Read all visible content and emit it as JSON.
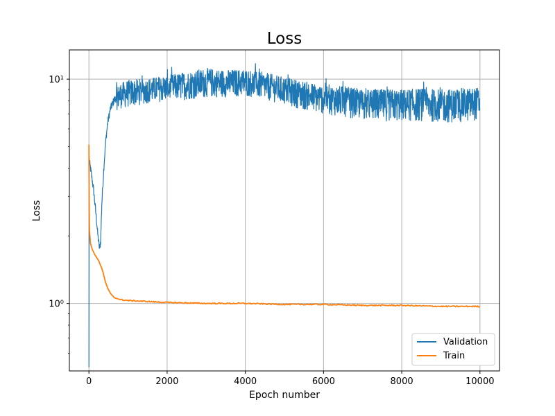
{
  "chart_data": {
    "type": "line",
    "title": "Loss",
    "xlabel": "Epoch number",
    "ylabel": "Loss",
    "yscale": "log",
    "xlim": [
      -500,
      10500
    ],
    "ylim": [
      0.5,
      13.5
    ],
    "xticks": [
      0,
      2000,
      4000,
      6000,
      8000,
      10000
    ],
    "xtick_labels": [
      "0",
      "2000",
      "4000",
      "6000",
      "8000",
      "10000"
    ],
    "yticks": [
      1,
      10
    ],
    "ytick_labels": [
      "10⁰",
      "10¹"
    ],
    "grid": true,
    "legend_position": "lower right",
    "series": [
      {
        "name": "Validation",
        "color": "#1f77b4",
        "noise_band": true,
        "x": [
          0,
          5,
          20,
          60,
          120,
          180,
          230,
          270,
          300,
          330,
          380,
          430,
          480,
          550,
          650,
          800,
          1000,
          1500,
          2000,
          2500,
          3000,
          3500,
          4000,
          4500,
          5000,
          5500,
          6000,
          6500,
          7000,
          7500,
          8000,
          8500,
          9000,
          9500,
          10000
        ],
        "values": [
          0.52,
          4.5,
          4.2,
          3.8,
          3.2,
          2.5,
          2.0,
          1.75,
          1.9,
          2.8,
          4.0,
          5.3,
          6.4,
          7.4,
          8.1,
          8.5,
          8.6,
          8.8,
          9.0,
          9.2,
          9.4,
          9.5,
          9.5,
          9.2,
          8.9,
          8.5,
          8.2,
          8.0,
          7.8,
          7.7,
          7.7,
          7.7,
          7.6,
          7.6,
          7.6
        ],
        "band_lower": [
          0.52,
          4.0,
          3.8,
          3.4,
          2.9,
          2.2,
          1.8,
          1.65,
          1.75,
          2.5,
          3.5,
          4.8,
          5.7,
          6.6,
          7.2,
          7.4,
          7.5,
          7.8,
          8.0,
          8.1,
          8.3,
          8.3,
          8.4,
          8.1,
          7.7,
          7.3,
          7.0,
          6.8,
          6.6,
          6.5,
          6.5,
          6.5,
          6.4,
          6.4,
          6.6
        ],
        "band_upper": [
          0.52,
          4.7,
          4.6,
          4.2,
          3.6,
          2.8,
          2.2,
          1.9,
          2.1,
          3.1,
          4.5,
          5.9,
          7.1,
          8.2,
          9.0,
          9.6,
          9.9,
          10.1,
          10.4,
          10.8,
          11.2,
          11.0,
          11.1,
          10.7,
          10.2,
          9.8,
          9.4,
          9.3,
          9.0,
          9.0,
          9.0,
          9.1,
          9.0,
          9.1,
          9.2
        ]
      },
      {
        "name": "Train",
        "color": "#ff7f0e",
        "noise_band": false,
        "x": [
          0,
          5,
          15,
          40,
          80,
          150,
          250,
          350,
          420,
          480,
          550,
          650,
          800,
          1000,
          1500,
          2000,
          3000,
          4000,
          5000,
          6000,
          7000,
          8000,
          9000,
          10000
        ],
        "values": [
          5.1,
          3.0,
          2.1,
          1.85,
          1.75,
          1.65,
          1.55,
          1.4,
          1.25,
          1.17,
          1.11,
          1.06,
          1.04,
          1.03,
          1.02,
          1.01,
          1.0,
          1.0,
          0.99,
          0.99,
          0.98,
          0.98,
          0.97,
          0.97
        ]
      }
    ]
  }
}
